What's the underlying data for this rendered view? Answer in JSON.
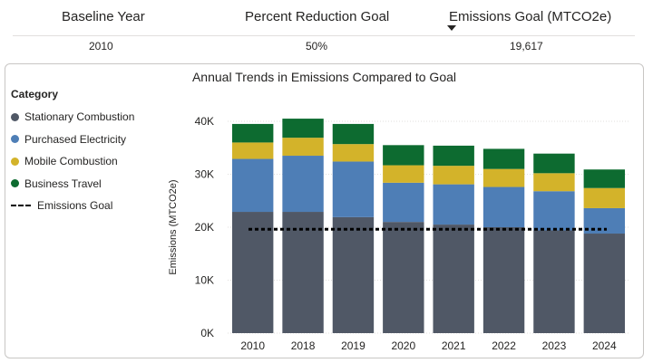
{
  "kpi": {
    "headers": [
      "Baseline Year",
      "Percent Reduction Goal",
      "Emissions Goal (MTCO2e)"
    ],
    "values": [
      "2010",
      "50%",
      "19,617"
    ]
  },
  "chart_data": {
    "type": "bar",
    "stacked": true,
    "title": "Annual Trends in Emissions Compared to Goal",
    "ylabel": "Emissions (MTCO2e)",
    "xlabel": "",
    "ylim": [
      0,
      40000
    ],
    "yticks": [
      "0K",
      "10K",
      "20K",
      "30K",
      "40K"
    ],
    "grid": true,
    "legend_title": "Category",
    "legend_position": "left",
    "categories": [
      "2010",
      "2018",
      "2019",
      "2020",
      "2021",
      "2022",
      "2023",
      "2024"
    ],
    "series": [
      {
        "name": "Stationary Combustion",
        "color": "#505866",
        "values": [
          22900,
          22900,
          21900,
          21000,
          20500,
          20000,
          19400,
          18800
        ]
      },
      {
        "name": "Purchased Electricity",
        "color": "#4e7eb6",
        "values": [
          10000,
          10600,
          10500,
          7400,
          7600,
          7600,
          7400,
          4800
        ]
      },
      {
        "name": "Mobile Combustion",
        "color": "#d3b32a",
        "values": [
          3100,
          3400,
          3300,
          3300,
          3500,
          3400,
          3400,
          3800
        ]
      },
      {
        "name": "Business Travel",
        "color": "#0d6b30",
        "values": [
          3500,
          3600,
          3800,
          3800,
          3800,
          3800,
          3700,
          3500
        ]
      }
    ],
    "goal": {
      "name": "Emissions Goal",
      "value": 19617,
      "color": "#000000"
    }
  }
}
